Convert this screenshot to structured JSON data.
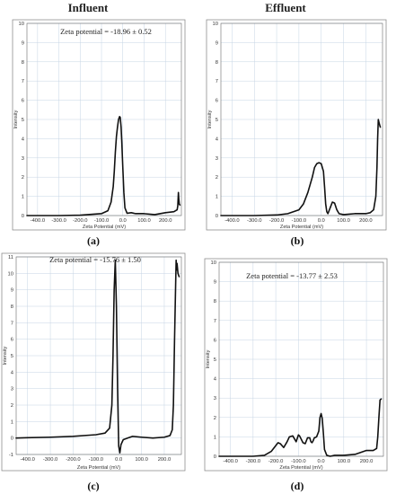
{
  "figure": {
    "column_titles": [
      "Influent",
      "Effluent"
    ],
    "colors": {
      "curve": "#111111",
      "grid": "#c6d4e4",
      "frame": "#8e8e8e",
      "background": "#ffffff"
    }
  },
  "chart_data": [
    {
      "id": "a",
      "type": "line",
      "panel_label": "(a)",
      "annotation": "Zeta potential = -18.96 ± 0.52",
      "xlabel": "Zeta Potential (mV)",
      "ylabel": "Intensity",
      "xlim": [
        -450,
        275
      ],
      "ylim": [
        0,
        10
      ],
      "xticks": [
        -400,
        -300,
        -200,
        -100,
        0,
        100,
        200
      ],
      "xtick_labels": [
        "-400.0",
        "-300.0",
        "-200.0",
        "-100.0",
        "0.0",
        "100.0",
        "200.0"
      ],
      "yticks": [
        0,
        1,
        2,
        3,
        4,
        5,
        6,
        7,
        8,
        9,
        10
      ],
      "grid": true,
      "series": [
        {
          "x": [
            -450,
            -300,
            -200,
            -100,
            -70,
            -55,
            -45,
            -40,
            -35,
            -30,
            -25,
            -20,
            -15,
            -12,
            -8,
            -5,
            0,
            5,
            10,
            20,
            40,
            60,
            100,
            150,
            200,
            240,
            255,
            258,
            261,
            263,
            265,
            268
          ],
          "y": [
            0,
            0,
            0.02,
            0.1,
            0.25,
            0.7,
            1.5,
            2.3,
            3.3,
            4.1,
            4.6,
            5.0,
            5.15,
            5.1,
            4.6,
            3.9,
            2.5,
            1.2,
            0.4,
            0.12,
            0.15,
            0.1,
            0.1,
            0.05,
            0.15,
            0.2,
            0.3,
            0.5,
            1.2,
            0.85,
            0.6,
            0.55
          ]
        }
      ]
    },
    {
      "id": "b",
      "type": "line",
      "panel_label": "(b)",
      "annotation": "Zeta potential = -7.76 ± 2.18",
      "xlabel": "Zeta Potential (mV)",
      "ylabel": "Intensity",
      "xlim": [
        -450,
        275
      ],
      "ylim": [
        0,
        10
      ],
      "xticks": [
        -400,
        -300,
        -200,
        -100,
        0,
        100,
        200
      ],
      "xtick_labels": [
        "-400.0",
        "-300.0",
        "-200.0",
        "-100.0",
        "0.0",
        "100.0",
        "200.0"
      ],
      "yticks": [
        0,
        1,
        2,
        3,
        4,
        5,
        6,
        7,
        8,
        9,
        10
      ],
      "grid": true,
      "series": [
        {
          "x": [
            -450,
            -300,
            -200,
            -150,
            -100,
            -80,
            -60,
            -40,
            -30,
            -20,
            -10,
            0,
            10,
            15,
            20,
            25,
            30,
            40,
            50,
            60,
            70,
            80,
            100,
            150,
            200,
            220,
            235,
            245,
            250,
            253,
            256,
            260,
            265
          ],
          "y": [
            0,
            0,
            0.03,
            0.1,
            0.3,
            0.6,
            1.2,
            2.0,
            2.5,
            2.7,
            2.75,
            2.7,
            2.3,
            1.5,
            0.6,
            0.2,
            0.1,
            0.4,
            0.7,
            0.65,
            0.3,
            0.1,
            0.05,
            0.1,
            0.1,
            0.15,
            0.3,
            1.0,
            2.5,
            4.0,
            5.0,
            4.8,
            4.6
          ]
        }
      ]
    },
    {
      "id": "c",
      "type": "line",
      "panel_label": "(c)",
      "annotation": "Zeta potential = -15.76 ± 1.50",
      "xlabel": "Zeta Potential (mV)",
      "ylabel": "Intensity",
      "xlim": [
        -450,
        275
      ],
      "ylim": [
        -1,
        11
      ],
      "xticks": [
        -400,
        -300,
        -200,
        -100,
        0,
        100,
        200
      ],
      "xtick_labels": [
        "-400.0",
        "-300.0",
        "-200.0",
        "-100.0",
        "0.0",
        "100.0",
        "200.0"
      ],
      "yticks": [
        -1,
        0,
        1,
        2,
        3,
        4,
        5,
        6,
        7,
        8,
        9,
        10,
        11
      ],
      "grid": true,
      "series": [
        {
          "x": [
            -450,
            -400,
            -300,
            -200,
            -100,
            -60,
            -40,
            -30,
            -25,
            -20,
            -15,
            -10,
            -5,
            0,
            5,
            10,
            20,
            40,
            60,
            100,
            150,
            200,
            225,
            235,
            240,
            245,
            250,
            252,
            254,
            256,
            260,
            265
          ],
          "y": [
            0,
            0.02,
            0.05,
            0.1,
            0.2,
            0.3,
            0.6,
            2.0,
            5.0,
            9.0,
            10.8,
            8.0,
            3.0,
            -0.5,
            -0.9,
            -0.4,
            -0.1,
            0,
            0.1,
            0.05,
            0,
            0.05,
            0.15,
            0.5,
            2.0,
            6.0,
            9.5,
            10.8,
            10.2,
            10.6,
            10.0,
            9.8
          ]
        }
      ]
    },
    {
      "id": "d",
      "type": "line",
      "panel_label": "(d)",
      "annotation": "Zeta potential = -13.77 ± 2.53",
      "xlabel": "Zeta Potential (mV)",
      "ylabel": "Intensity",
      "xlim": [
        -450,
        275
      ],
      "ylim": [
        0,
        10
      ],
      "xticks": [
        -400,
        -300,
        -200,
        -100,
        0,
        100,
        200
      ],
      "xtick_labels": [
        "-400.0",
        "-300.0",
        "-200.0",
        "-100.0",
        "0.0",
        "100.0",
        "200.0"
      ],
      "yticks": [
        0,
        1,
        2,
        3,
        4,
        5,
        6,
        7,
        8,
        9,
        10
      ],
      "grid": true,
      "series": [
        {
          "x": [
            -450,
            -300,
            -250,
            -220,
            -200,
            -190,
            -180,
            -165,
            -150,
            -140,
            -125,
            -110,
            -100,
            -95,
            -80,
            -70,
            -60,
            -50,
            -45,
            -40,
            -35,
            -30,
            -20,
            -10,
            -5,
            0,
            5,
            10,
            15,
            25,
            40,
            60,
            100,
            150,
            200,
            230,
            245,
            250,
            255,
            260,
            265
          ],
          "y": [
            0,
            0,
            0.05,
            0.25,
            0.55,
            0.7,
            0.65,
            0.45,
            0.75,
            1.0,
            1.05,
            0.75,
            1.1,
            1.05,
            0.7,
            0.65,
            0.95,
            0.95,
            0.75,
            0.7,
            0.8,
            0.95,
            1.0,
            1.3,
            2.0,
            2.2,
            1.95,
            1.2,
            0.35,
            0.05,
            0,
            0.05,
            0.05,
            0.1,
            0.3,
            0.3,
            0.4,
            1.0,
            2.0,
            2.9,
            2.95
          ]
        }
      ]
    }
  ]
}
